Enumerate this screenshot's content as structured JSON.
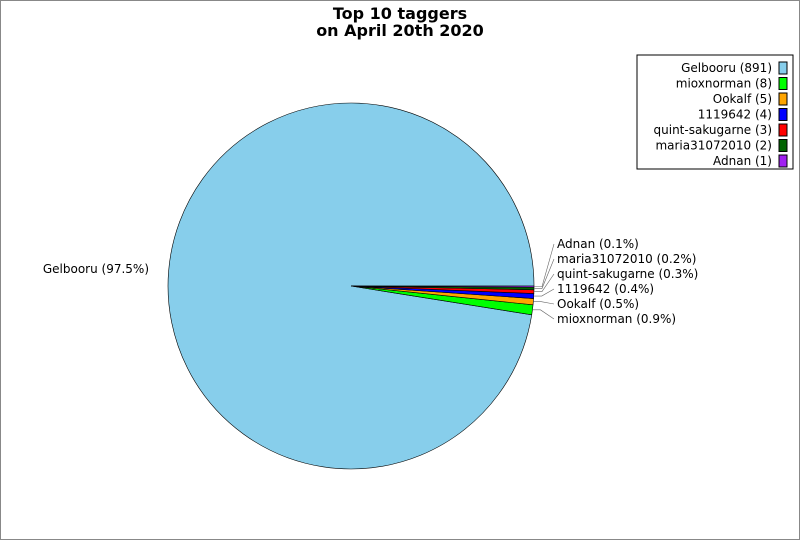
{
  "chart_data": {
    "type": "pie",
    "title": [
      "Top 10 taggers",
      "on April 20th 2020"
    ],
    "legend_position": "top-right",
    "slices": [
      {
        "label": "Gelbooru",
        "value": 891,
        "percent_label": "Gelbooru (97.5%)",
        "legend_label": "Gelbooru (891)",
        "color": "#87ceeb"
      },
      {
        "label": "mioxnorman",
        "value": 8,
        "percent_label": "mioxnorman (0.9%)",
        "legend_label": "mioxnorman (8)",
        "color": "#00ff00"
      },
      {
        "label": "Ookalf",
        "value": 5,
        "percent_label": "Ookalf (0.5%)",
        "legend_label": "Ookalf (5)",
        "color": "#ffa500"
      },
      {
        "label": "1119642",
        "value": 4,
        "percent_label": "1119642 (0.4%)",
        "legend_label": "1119642 (4)",
        "color": "#0000ff"
      },
      {
        "label": "quint-sakugarne",
        "value": 3,
        "percent_label": "quint-sakugarne (0.3%)",
        "legend_label": "quint-sakugarne (3)",
        "color": "#ff0000"
      },
      {
        "label": "maria31072010",
        "value": 2,
        "percent_label": "maria31072010 (0.2%)",
        "legend_label": "maria31072010 (2)",
        "color": "#006400"
      },
      {
        "label": "Adnan",
        "value": 1,
        "percent_label": "Adnan (0.1%)",
        "legend_label": "Adnan (1)",
        "color": "#a020f0"
      }
    ]
  }
}
